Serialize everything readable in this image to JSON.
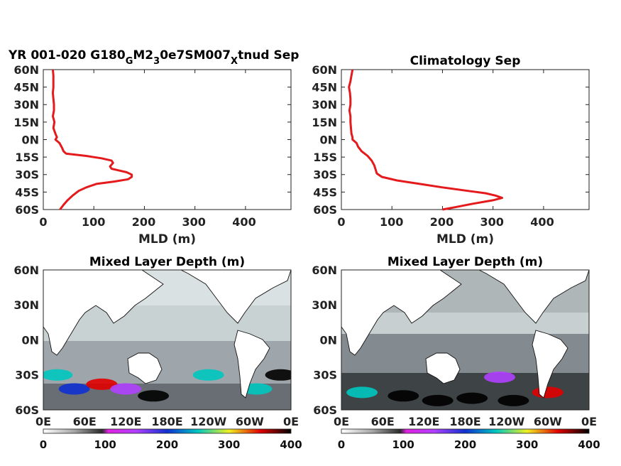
{
  "chart_data": [
    {
      "type": "line",
      "title_parts": [
        "YR 001-020 G180",
        "G",
        "M2",
        "3",
        "0e7SM007",
        "X",
        "tnud Sep"
      ],
      "xlabel": "MLD (m)",
      "xlim": [
        0,
        490
      ],
      "ylim": [
        -60,
        60
      ],
      "x_ticks": [
        "0",
        "100",
        "200",
        "300",
        "400"
      ],
      "y_ticks": [
        "60N",
        "45N",
        "30N",
        "15N",
        "0N",
        "15S",
        "30S",
        "45S",
        "60S"
      ],
      "series_color": "#e41a1c",
      "series": [
        {
          "values": [
            {
              "lat": 60,
              "mld": 19
            },
            {
              "lat": 55,
              "mld": 20
            },
            {
              "lat": 50,
              "mld": 20
            },
            {
              "lat": 45,
              "mld": 20
            },
            {
              "lat": 40,
              "mld": 19
            },
            {
              "lat": 35,
              "mld": 20
            },
            {
              "lat": 30,
              "mld": 21
            },
            {
              "lat": 25,
              "mld": 21
            },
            {
              "lat": 20,
              "mld": 19
            },
            {
              "lat": 15,
              "mld": 22
            },
            {
              "lat": 10,
              "mld": 20
            },
            {
              "lat": 5,
              "mld": 24
            },
            {
              "lat": 2,
              "mld": 27
            },
            {
              "lat": 0,
              "mld": 24
            },
            {
              "lat": -3,
              "mld": 32
            },
            {
              "lat": -7,
              "mld": 37
            },
            {
              "lat": -10,
              "mld": 40
            },
            {
              "lat": -12,
              "mld": 45
            },
            {
              "lat": -14,
              "mld": 85
            },
            {
              "lat": -16,
              "mld": 115
            },
            {
              "lat": -18,
              "mld": 135
            },
            {
              "lat": -20,
              "mld": 138
            },
            {
              "lat": -23,
              "mld": 132
            },
            {
              "lat": -25,
              "mld": 135
            },
            {
              "lat": -26,
              "mld": 145
            },
            {
              "lat": -28,
              "mld": 165
            },
            {
              "lat": -30,
              "mld": 175
            },
            {
              "lat": -32,
              "mld": 175
            },
            {
              "lat": -34,
              "mld": 168
            },
            {
              "lat": -36,
              "mld": 140
            },
            {
              "lat": -38,
              "mld": 105
            },
            {
              "lat": -41,
              "mld": 85
            },
            {
              "lat": -44,
              "mld": 70
            },
            {
              "lat": -48,
              "mld": 58
            },
            {
              "lat": -52,
              "mld": 48
            },
            {
              "lat": -56,
              "mld": 40
            },
            {
              "lat": -60,
              "mld": 33
            }
          ]
        }
      ]
    },
    {
      "type": "line",
      "title": "Climatology Sep",
      "xlabel": "MLD (m)",
      "xlim": [
        0,
        490
      ],
      "ylim": [
        -60,
        60
      ],
      "x_ticks": [
        "0",
        "100",
        "200",
        "300",
        "400"
      ],
      "y_ticks": [
        "60N",
        "45N",
        "30N",
        "15N",
        "0N",
        "15S",
        "30S",
        "45S",
        "60S"
      ],
      "series_color": "#e41a1c",
      "series": [
        {
          "values": [
            {
              "lat": 60,
              "mld": 22
            },
            {
              "lat": 55,
              "mld": 20
            },
            {
              "lat": 50,
              "mld": 18
            },
            {
              "lat": 45,
              "mld": 15
            },
            {
              "lat": 40,
              "mld": 17
            },
            {
              "lat": 35,
              "mld": 18
            },
            {
              "lat": 30,
              "mld": 18
            },
            {
              "lat": 25,
              "mld": 16
            },
            {
              "lat": 20,
              "mld": 18
            },
            {
              "lat": 15,
              "mld": 18
            },
            {
              "lat": 10,
              "mld": 19
            },
            {
              "lat": 5,
              "mld": 20
            },
            {
              "lat": 2,
              "mld": 22
            },
            {
              "lat": 0,
              "mld": 22
            },
            {
              "lat": -3,
              "mld": 30
            },
            {
              "lat": -6,
              "mld": 33
            },
            {
              "lat": -10,
              "mld": 40
            },
            {
              "lat": -14,
              "mld": 52
            },
            {
              "lat": -18,
              "mld": 60
            },
            {
              "lat": -22,
              "mld": 65
            },
            {
              "lat": -26,
              "mld": 68
            },
            {
              "lat": -29,
              "mld": 70
            },
            {
              "lat": -32,
              "mld": 80
            },
            {
              "lat": -35,
              "mld": 110
            },
            {
              "lat": -38,
              "mld": 155
            },
            {
              "lat": -41,
              "mld": 200
            },
            {
              "lat": -44,
              "mld": 250
            },
            {
              "lat": -46,
              "mld": 285
            },
            {
              "lat": -48,
              "mld": 305
            },
            {
              "lat": -50,
              "mld": 318
            },
            {
              "lat": -52,
              "mld": 300
            },
            {
              "lat": -55,
              "mld": 260
            },
            {
              "lat": -58,
              "mld": 225
            },
            {
              "lat": -60,
              "mld": 200
            }
          ]
        }
      ]
    },
    {
      "type": "heatmap",
      "title": "Mixed Layer Depth (m)",
      "y_ticks": [
        "60N",
        "30N",
        "0N",
        "30S",
        "60S"
      ],
      "x_ticks": [
        "0E",
        "60E",
        "120E",
        "180E",
        "120W",
        "60W",
        "0E"
      ],
      "colorbar_ticks": [
        "0",
        "100",
        "200",
        "300",
        "400"
      ],
      "colorbar_range": [
        0,
        400
      ],
      "land_color": "#ffffff",
      "features": [
        {
          "lon": 20,
          "lat": -30,
          "mld": 240
        },
        {
          "lon": 45,
          "lat": -42,
          "mld": 180
        },
        {
          "lon": 85,
          "lat": -38,
          "mld": 320
        },
        {
          "lon": 120,
          "lat": -42,
          "mld": 150
        },
        {
          "lon": 160,
          "lat": -48,
          "mld": 360
        },
        {
          "lon": 240,
          "lat": -30,
          "mld": 230
        },
        {
          "lon": 310,
          "lat": -42,
          "mld": 250
        },
        {
          "lon": 345,
          "lat": -30,
          "mld": 400
        }
      ]
    },
    {
      "type": "heatmap",
      "title": "Mixed Layer Depth (m)",
      "y_ticks": [
        "60N",
        "30N",
        "0N",
        "30S",
        "60S"
      ],
      "x_ticks": [
        "0E",
        "60E",
        "120E",
        "180E",
        "120W",
        "60W",
        "0E"
      ],
      "colorbar_ticks": [
        "0",
        "100",
        "200",
        "300",
        "400"
      ],
      "colorbar_range": [
        0,
        400
      ],
      "land_color": "#ffffff",
      "features": [
        {
          "lon": 30,
          "lat": -45,
          "mld": 220
        },
        {
          "lon": 90,
          "lat": -48,
          "mld": 380
        },
        {
          "lon": 140,
          "lat": -52,
          "mld": 400
        },
        {
          "lon": 190,
          "lat": -50,
          "mld": 380
        },
        {
          "lon": 250,
          "lat": -52,
          "mld": 400
        },
        {
          "lon": 230,
          "lat": -32,
          "mld": 120
        },
        {
          "lon": 300,
          "lat": -45,
          "mld": 330
        }
      ]
    }
  ],
  "colormap": [
    {
      "v": 0,
      "c": "#ffffff"
    },
    {
      "v": 50,
      "c": "#a6a6a6"
    },
    {
      "v": 95,
      "c": "#2a2a2a"
    },
    {
      "v": 105,
      "c": "#e020e0"
    },
    {
      "v": 150,
      "c": "#b040ff"
    },
    {
      "v": 200,
      "c": "#1030d0"
    },
    {
      "v": 250,
      "c": "#00c8c0"
    },
    {
      "v": 300,
      "c": "#f0f020"
    },
    {
      "v": 350,
      "c": "#e00000"
    },
    {
      "v": 400,
      "c": "#000000"
    }
  ]
}
